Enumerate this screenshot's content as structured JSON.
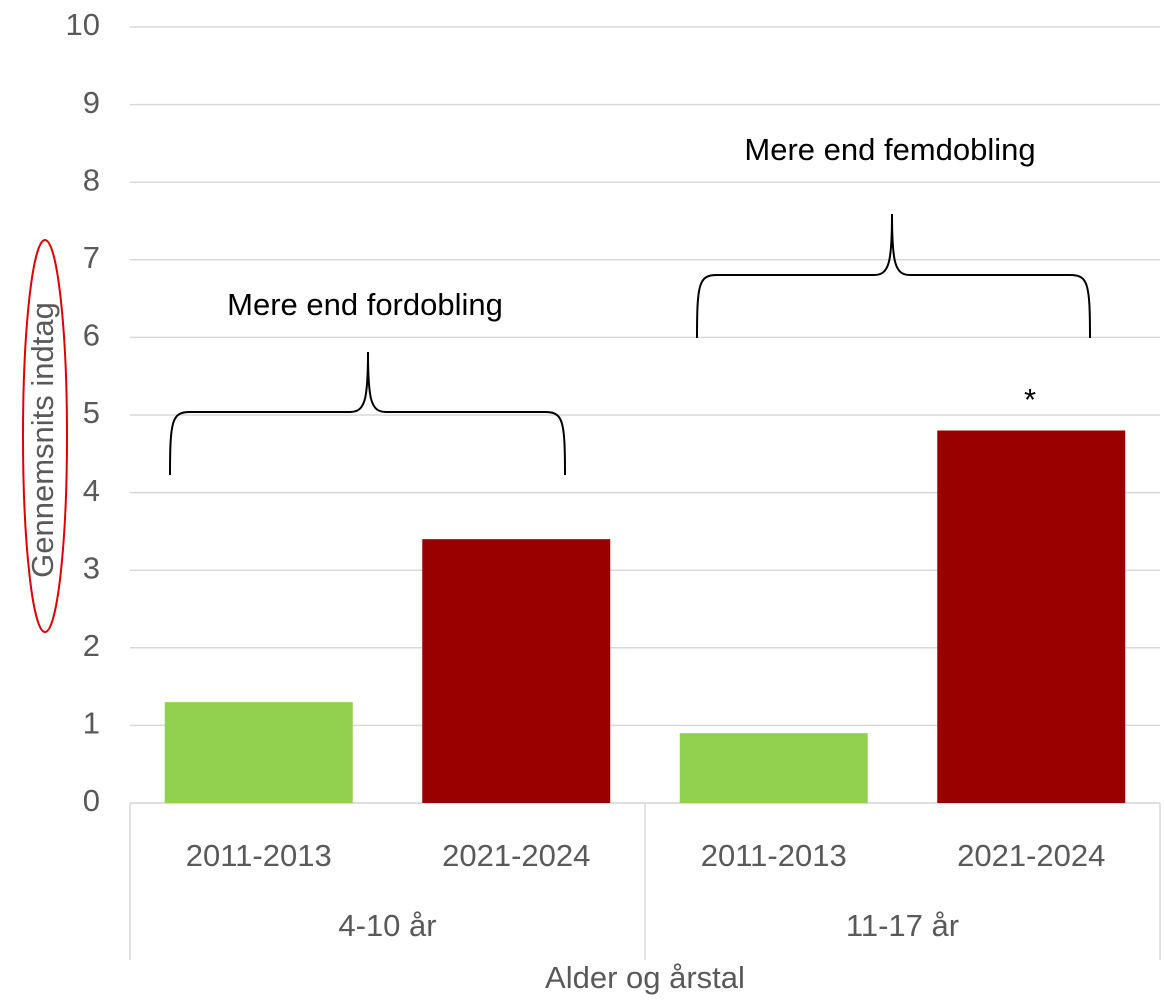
{
  "chart_data": {
    "type": "bar",
    "categories": [
      "2011-2013",
      "2021-2024",
      "2011-2013",
      "2021-2024"
    ],
    "groups": [
      {
        "label": "4-10 år",
        "span": 2
      },
      {
        "label": "11-17 år",
        "span": 2
      }
    ],
    "values": [
      1.3,
      3.4,
      0.9,
      4.8
    ],
    "colors": [
      "#92d050",
      "#990000",
      "#92d050",
      "#990000"
    ],
    "ylabel": "Gennemsnits indtag",
    "xlabel": "Alder og årstal",
    "annotations": [
      "Mere end fordobling",
      "Mere end femdobling",
      "*"
    ],
    "ylim": [
      0,
      10
    ],
    "yticks": [
      0,
      1,
      2,
      3,
      4,
      5,
      6,
      7,
      8,
      9,
      10
    ],
    "grid": true
  }
}
